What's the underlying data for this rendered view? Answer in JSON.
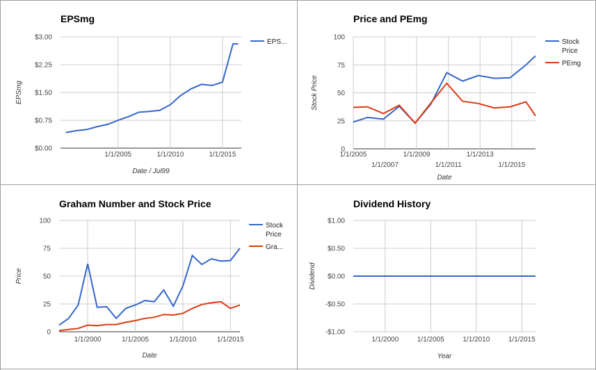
{
  "chart_data": [
    {
      "type": "line",
      "title": "EPSmg",
      "xlabel": "Date / Jul99",
      "ylabel": "EPSmg",
      "xticks": [
        "1/1/2005",
        "1/1/2010",
        "1/1/2015"
      ],
      "yticks": [
        "$0.00",
        "$0.75",
        "$1.50",
        "$2.25",
        "$3.00"
      ],
      "ylim": [
        0,
        3
      ],
      "xlim": [
        1999.5,
        2016.8
      ],
      "legend_position": "right",
      "series": [
        {
          "name": "EPS...",
          "color": "#3366cc",
          "x": [
            2000,
            2001,
            2002,
            2003,
            2004,
            2005,
            2006,
            2007,
            2008,
            2009,
            2010,
            2011,
            2012,
            2013,
            2014,
            2015,
            2016,
            2016.5
          ],
          "values": [
            0.42,
            0.47,
            0.5,
            0.58,
            0.64,
            0.75,
            0.85,
            0.97,
            0.99,
            1.02,
            1.17,
            1.42,
            1.6,
            1.72,
            1.69,
            1.78,
            2.81,
            2.81
          ]
        }
      ]
    },
    {
      "type": "line",
      "title": "Price and PEmg",
      "xlabel": "Date",
      "ylabel": "Stock Price",
      "xticks_top": [
        "1/1/2005",
        "1/1/2009",
        "1/1/2013"
      ],
      "xticks_bottom": [
        "1/1/2007",
        "1/1/2011",
        "1/1/2015"
      ],
      "yticks": [
        "0",
        "25",
        "50",
        "75",
        "100"
      ],
      "ylim": [
        0,
        100
      ],
      "xlim": [
        2005,
        2016.5
      ],
      "legend_position": "right",
      "series": [
        {
          "name": "Stock Price",
          "color": "#3366cc",
          "x": [
            2005,
            2005.9,
            2006.9,
            2007.9,
            2008.9,
            2009.9,
            2010.9,
            2011.9,
            2012.9,
            2013.9,
            2014.9,
            2015.9,
            2016.5
          ],
          "values": [
            24,
            28,
            26.5,
            38,
            23,
            40,
            68,
            60.5,
            65.5,
            63,
            63.5,
            75,
            83
          ]
        },
        {
          "name": "PEmg",
          "color": "#dc3912",
          "x": [
            2005,
            2005.9,
            2006.9,
            2007.9,
            2008.9,
            2009.9,
            2010.9,
            2011.9,
            2012.9,
            2013.9,
            2014.9,
            2015.9,
            2016.5
          ],
          "values": [
            37,
            37.5,
            31.5,
            39,
            23,
            41,
            58.5,
            42.5,
            40.5,
            36.5,
            37.5,
            42,
            29.5
          ]
        }
      ]
    },
    {
      "type": "line",
      "title": "Graham Number and Stock Price",
      "xlabel": "Date",
      "ylabel": "Price",
      "xticks": [
        "1/1/2000",
        "1/1/2005",
        "1/1/2010",
        "1/1/2015"
      ],
      "yticks": [
        "0",
        "25",
        "50",
        "75",
        "100"
      ],
      "ylim": [
        0,
        100
      ],
      "xlim": [
        1997,
        2016
      ],
      "legend_position": "right",
      "series": [
        {
          "name": "Stock Price",
          "color": "#3366cc",
          "x": [
            1997,
            1998,
            1999,
            2000,
            2001,
            2002,
            2003,
            2004,
            2005,
            2006,
            2007,
            2008,
            2009,
            2010,
            2011,
            2012,
            2013,
            2014,
            2015,
            2016
          ],
          "values": [
            6,
            12,
            24,
            61,
            22,
            22.5,
            12,
            21,
            24,
            28,
            27,
            37.5,
            23,
            41,
            68.5,
            60.5,
            65.5,
            63.5,
            64,
            75
          ]
        },
        {
          "name": "Gra...",
          "color": "#dc3912",
          "x": [
            1997,
            1998,
            1999,
            2000,
            2001,
            2002,
            2003,
            2004,
            2005,
            2006,
            2007,
            2008,
            2009,
            2010,
            2011,
            2012,
            2013,
            2014,
            2015,
            2016
          ],
          "values": [
            1,
            2,
            3,
            6,
            5.5,
            6.5,
            6.5,
            8.5,
            10,
            12,
            13,
            15.5,
            15,
            16.5,
            21,
            24.5,
            26,
            27,
            21,
            24
          ]
        }
      ]
    },
    {
      "type": "line",
      "title": "Dividend History",
      "xlabel": "Year",
      "ylabel": "Dividend",
      "xticks": [
        "1/1/2000",
        "1/1/2005",
        "1/1/2010",
        "1/1/2015"
      ],
      "yticks": [
        "-$1.00",
        "-$0.50",
        "$0.00",
        "$0.50",
        "$1.00"
      ],
      "ylim": [
        -1,
        1
      ],
      "xlim": [
        1996.5,
        2016.5
      ],
      "series": [
        {
          "color": "#3366cc",
          "x": [
            1996.5,
            2016.5
          ],
          "values": [
            0,
            0
          ]
        }
      ]
    }
  ]
}
